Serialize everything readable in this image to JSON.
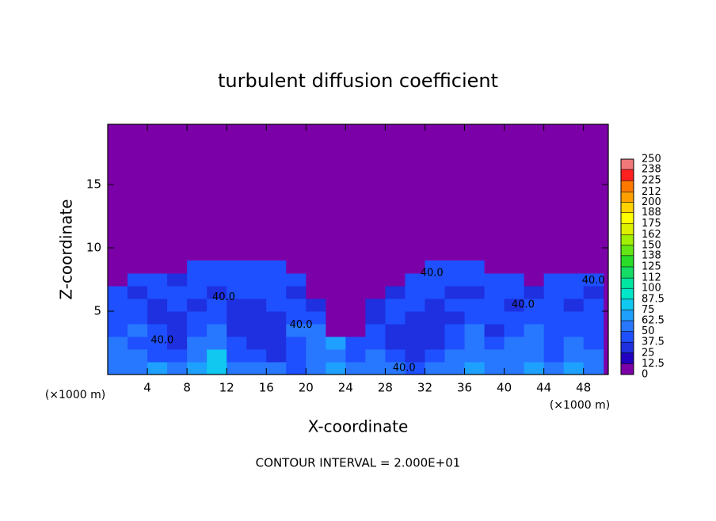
{
  "chart_data": {
    "type": "contour",
    "title": "turbulent diffusion coefficient",
    "xlabel": "X-coordinate",
    "ylabel": "Z-coordinate",
    "x_unit": "(×1000 m)",
    "y_unit": "(×1000 m)",
    "footnote": "CONTOUR INTERVAL = 2.000E+01",
    "xlim": [
      0,
      50.5
    ],
    "ylim": [
      0,
      19.75
    ],
    "xticks": [
      4,
      8,
      12,
      16,
      20,
      24,
      28,
      32,
      36,
      40,
      44,
      48
    ],
    "yticks": [
      5,
      10,
      15
    ],
    "background": 0,
    "x_edges": [
      0,
      2,
      4,
      6,
      8,
      10,
      12,
      14,
      16,
      18,
      20,
      22,
      24,
      26,
      28,
      30,
      32,
      34,
      36,
      38,
      40,
      42,
      44,
      46,
      48,
      50
    ],
    "z_edges": [
      0,
      1,
      2,
      3,
      4,
      5,
      6,
      7,
      8,
      9
    ],
    "field": [
      [
        60,
        55,
        70,
        50,
        65,
        80,
        60,
        55,
        50,
        45,
        60,
        70,
        55,
        60,
        50,
        45,
        55,
        60,
        70,
        55,
        60,
        65,
        50,
        70,
        60
      ],
      [
        55,
        50,
        45,
        40,
        60,
        75,
        45,
        40,
        35,
        40,
        55,
        60,
        45,
        50,
        40,
        35,
        40,
        55,
        60,
        50,
        55,
        60,
        45,
        55,
        50
      ],
      [
        50,
        45,
        40,
        35,
        50,
        55,
        40,
        35,
        30,
        45,
        60,
        65,
        40,
        45,
        35,
        30,
        35,
        45,
        55,
        40,
        50,
        55,
        40,
        50,
        45
      ],
      [
        45,
        50,
        40,
        30,
        45,
        50,
        35,
        30,
        30,
        50,
        55,
        5,
        5,
        40,
        35,
        30,
        30,
        40,
        50,
        35,
        45,
        50,
        45,
        45,
        40
      ],
      [
        40,
        45,
        35,
        35,
        40,
        45,
        30,
        30,
        35,
        45,
        40,
        5,
        5,
        35,
        40,
        35,
        30,
        35,
        45,
        40,
        40,
        45,
        40,
        40,
        45
      ],
      [
        45,
        40,
        35,
        40,
        35,
        40,
        35,
        35,
        40,
        40,
        35,
        5,
        5,
        35,
        40,
        40,
        35,
        40,
        40,
        45,
        35,
        40,
        45,
        35,
        40
      ],
      [
        40,
        35,
        40,
        45,
        40,
        35,
        40,
        40,
        45,
        35,
        5,
        5,
        5,
        5,
        35,
        45,
        40,
        35,
        35,
        40,
        40,
        35,
        40,
        40,
        35
      ],
      [
        5,
        40,
        40,
        35,
        40,
        40,
        45,
        40,
        40,
        40,
        5,
        5,
        5,
        5,
        5,
        40,
        45,
        40,
        40,
        45,
        40,
        5,
        40,
        45,
        40
      ],
      [
        5,
        5,
        5,
        5,
        45,
        40,
        40,
        45,
        40,
        5,
        5,
        5,
        5,
        5,
        5,
        5,
        40,
        45,
        40,
        5,
        5,
        5,
        5,
        5,
        5
      ]
    ],
    "contour_labels": [
      {
        "text": "40.0",
        "x": 5.5,
        "z": 2.7
      },
      {
        "text": "40.0",
        "x": 11.7,
        "z": 6.1
      },
      {
        "text": "40.0",
        "x": 19.5,
        "z": 3.9
      },
      {
        "text": "40.0",
        "x": 29.9,
        "z": 0.5
      },
      {
        "text": "40.0",
        "x": 32.7,
        "z": 8
      },
      {
        "text": "40.0",
        "x": 41.9,
        "z": 5.5
      },
      {
        "text": "40.0",
        "x": 49,
        "z": 7.4
      }
    ],
    "colorbar": {
      "ticks": [
        0,
        12.5,
        25,
        37.5,
        50,
        62.5,
        75,
        87.5,
        100,
        112,
        125,
        138,
        150,
        162,
        175,
        188,
        200,
        212,
        225,
        238,
        250
      ],
      "colors": [
        "#7c00a8",
        "#2200c0",
        "#1e30e0",
        "#1e50ff",
        "#2878ff",
        "#1ea0ff",
        "#10c8f0",
        "#00e6c8",
        "#00e6a0",
        "#14dc64",
        "#28dc28",
        "#64e614",
        "#a0f000",
        "#dcf000",
        "#ffff00",
        "#ffd200",
        "#ffa000",
        "#ff7800",
        "#ff2020",
        "#f07878"
      ]
    }
  }
}
